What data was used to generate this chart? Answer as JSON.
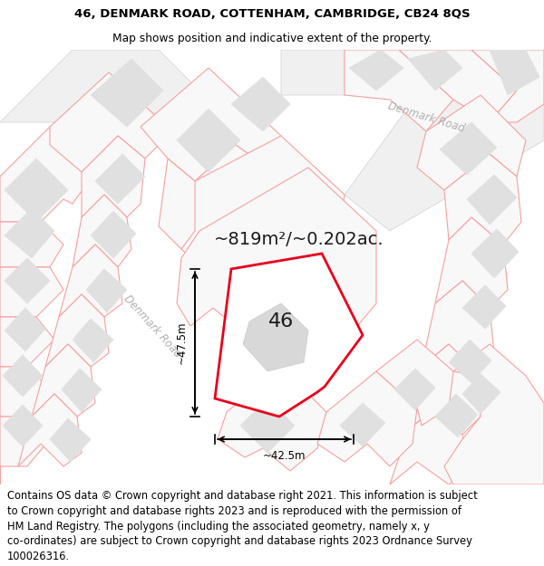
{
  "title_line1": "46, DENMARK ROAD, COTTENHAM, CAMBRIDGE, CB24 8QS",
  "title_line2": "Map shows position and indicative extent of the property.",
  "footer_lines": [
    "Contains OS data © Crown copyright and database right 2021. This information is subject",
    "to Crown copyright and database rights 2023 and is reproduced with the permission of",
    "HM Land Registry. The polygons (including the associated geometry, namely x, y",
    "co-ordinates) are subject to Crown copyright and database rights 2023 Ordnance Survey",
    "100026316."
  ],
  "area_label": "~819m²/~0.202ac.",
  "property_number": "46",
  "dim_width": "~42.5m",
  "dim_height": "~47.5m",
  "road_label1": "Denmark Road",
  "road_label2": "Denmark Road",
  "map_bg": "#f7f7f7",
  "property_fill": "#ffffff",
  "property_edge": "#e8001c",
  "building_fill": "#e0e0e0",
  "building_edge": "#e0e0e0",
  "boundary_color": "#f5a0a0",
  "road_fill": "#ffffff",
  "road_edge": "#d0d0d0",
  "road_label_color": "#b0b0b0",
  "text_color": "#000000",
  "footer_fontsize": 8.3,
  "title_fontsize1": 9.5,
  "title_fontsize2": 8.8
}
